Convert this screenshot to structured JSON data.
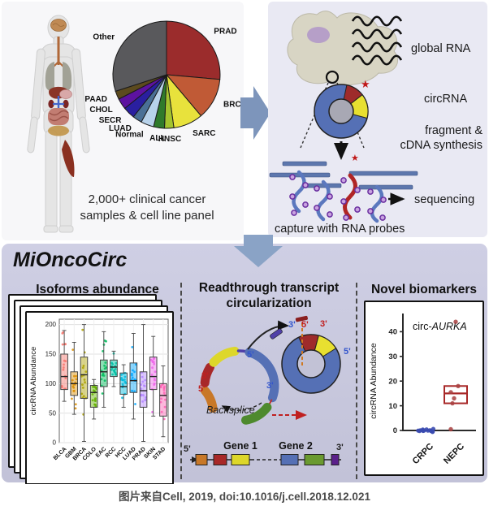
{
  "page": {
    "caption": "图片来自Cell, 2019, doi:10.1016/j.cell.2018.12.021"
  },
  "top_left": {
    "caption_line1": "2,000+ clinical cancer",
    "caption_line2": "samples & cell line panel"
  },
  "top_right": {
    "global_rna": "global RNA",
    "circrna": "circRNA",
    "fragment_line1": "fragment &",
    "fragment_line2": "cDNA synthesis",
    "sequencing": "sequencing",
    "capture": "capture with RNA probes"
  },
  "bottom": {
    "title": "MiOncoCirc",
    "isoforms_title": "Isoforms abundance",
    "readthrough_title_line1": "Readthrough transcript",
    "readthrough_title_line2": "circularization",
    "biomarkers_title": "Novel biomarkers",
    "labels": {
      "backsplice": "Backsplice",
      "gene1": "Gene 1",
      "gene2": "Gene 2",
      "p5": "5'",
      "p3": "3'"
    }
  },
  "colors": {
    "arrow": "#7d95bb",
    "panel_lavender": "#c9c9dd",
    "donut_blue": "#5570b5",
    "donut_red": "#9e2b2b",
    "donut_yellow": "#e8e030",
    "probe_blue": "#5b78be",
    "probe_red": "#b02525",
    "ring_purple": "#6a2fa0",
    "star_red": "#c01818"
  },
  "chart_data": [
    {
      "type": "pie",
      "title": "",
      "categories": [
        "PRAD",
        "BRCA",
        "SARC",
        "HNSC",
        "ALL",
        "Normal",
        "LUAD",
        "SECR",
        "CHOL",
        "PAAD",
        "Other"
      ],
      "values_percent": [
        26.4,
        12.5,
        8.9,
        2.8,
        3.3,
        3.9,
        2.8,
        3.6,
        3.3,
        2.5,
        30.0
      ],
      "colors": [
        "#9b2c2c",
        "#c05a36",
        "#e8e23c",
        "#a4c42e",
        "#2f7a2b",
        "#b8d2ea",
        "#4a7096",
        "#2a1fa0",
        "#5d12a0",
        "#5c4a1e",
        "#59595c"
      ],
      "legend_position": "around-slices",
      "caption": "2,000+ clinical cancer samples & cell line panel"
    },
    {
      "type": "box",
      "title": "Isoforms abundance",
      "xlabel": "",
      "ylabel": "circRNA Abundance",
      "ylim": [
        0,
        205
      ],
      "yticks": [
        0,
        50,
        100,
        150,
        200
      ],
      "grid": true,
      "categories": [
        "BLCA",
        "GBM",
        "BRCA",
        "COLO",
        "EAC",
        "RCC",
        "HCC",
        "LUAD",
        "PRAD",
        "SKIN",
        "STAD"
      ],
      "boxes_low_q1_med_q3_high": [
        [
          70,
          90,
          112,
          150,
          190
        ],
        [
          48,
          80,
          100,
          120,
          170
        ],
        [
          2,
          75,
          115,
          145,
          200
        ],
        [
          40,
          60,
          85,
          97,
          107
        ],
        [
          60,
          95,
          120,
          140,
          188
        ],
        [
          95,
          112,
          128,
          140,
          155
        ],
        [
          60,
          82,
          95,
          118,
          132
        ],
        [
          40,
          85,
          105,
          135,
          185
        ],
        [
          2,
          60,
          88,
          120,
          200
        ],
        [
          45,
          90,
          112,
          145,
          180
        ],
        [
          10,
          45,
          80,
          100,
          130
        ]
      ],
      "colors": [
        "#F8766D",
        "#DB8E00",
        "#AEA200",
        "#64B200",
        "#00BD5C",
        "#00C1A7",
        "#00BADE",
        "#00A6FF",
        "#B385FF",
        "#EF67EB",
        "#FF63B6"
      ],
      "overlay": "jittered points per category"
    },
    {
      "type": "box-scatter",
      "title": "circ-AURKA",
      "title_prefix": "circ-",
      "title_italic": "AURKA",
      "ylabel": "circRNA Abundance",
      "ylim": [
        0,
        46
      ],
      "yticks": [
        0,
        10,
        20,
        30,
        40
      ],
      "categories": [
        "CRPC",
        "NEPC"
      ],
      "groups": [
        {
          "name": "CRPC",
          "color": "#3a4ab0",
          "points": [
            0,
            0,
            0,
            0,
            0,
            0,
            0,
            0,
            0,
            0,
            0,
            0,
            0,
            0
          ]
        },
        {
          "name": "NEPC",
          "color": "#a82828",
          "box_q1_med_q3": [
            11,
            15,
            18
          ],
          "points": [
            44,
            18,
            15.5,
            13,
            11,
            0.5
          ]
        }
      ]
    }
  ]
}
